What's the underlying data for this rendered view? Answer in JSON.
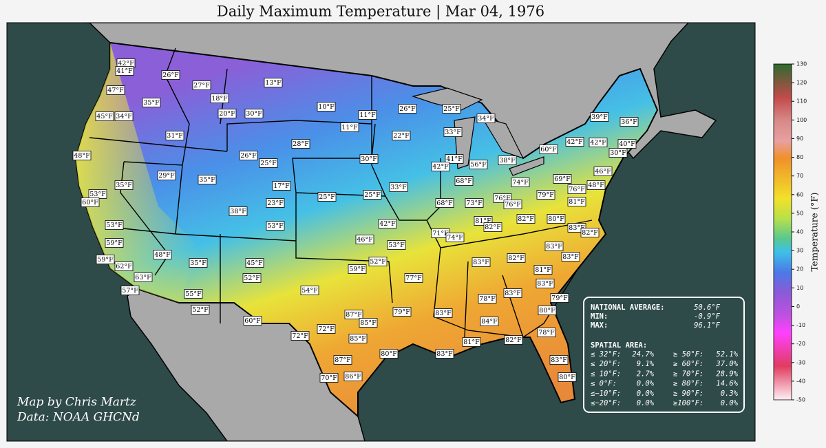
{
  "title": "Daily Maximum Temperature | Mar 04, 1976",
  "credit": [
    "Map by Chris Martz",
    "Data: NOAA GHCNd"
  ],
  "stations": [
    "42°F",
    "41°F",
    "26°F",
    "27°F",
    "13°F",
    "47°F",
    "18°F",
    "35°F",
    "10°F",
    "26°F",
    "25°F",
    "20°F",
    "30°F",
    "11°F",
    "45°F",
    "34°F",
    "39°F",
    "34°F",
    "36°F",
    "11°F",
    "33°F",
    "22°F",
    "31°F",
    "28°F",
    "42°F",
    "42°F",
    "40°F",
    "60°F",
    "30°F",
    "48°F",
    "26°F",
    "41°F",
    "30°F",
    "25°F",
    "56°F",
    "38°F",
    "42°F",
    "46°F",
    "29°F",
    "35°F",
    "69°F",
    "74°F",
    "68°F",
    "48°F",
    "35°F",
    "17°F",
    "33°F",
    "76°F",
    "53°F",
    "25°F",
    "25°F",
    "79°F",
    "76°F",
    "60°F",
    "23°F",
    "73°F",
    "76°F",
    "81°F",
    "68°F",
    "38°F",
    "82°F",
    "80°F",
    "81°F",
    "82°F",
    "42°F",
    "53°F",
    "53°F",
    "83°F",
    "82°F",
    "71°F",
    "74°F",
    "46°F",
    "59°F",
    "53°F",
    "83°F",
    "48°F",
    "83°F",
    "59°F",
    "82°F",
    "35°F",
    "45°F",
    "52°F",
    "83°F",
    "62°F",
    "59°F",
    "81°F",
    "63°F",
    "52°F",
    "77°F",
    "83°F",
    "57°F",
    "54°F",
    "55°F",
    "83°F",
    "78°F",
    "79°F",
    "52°F",
    "80°F",
    "79°F",
    "83°F",
    "87°F",
    "60°F",
    "85°F",
    "84°F",
    "72°F",
    "78°F",
    "72°F",
    "85°F",
    "81°F",
    "82°F",
    "80°F",
    "83°F",
    "87°F",
    "83°F",
    "70°F",
    "86°F",
    "80°F"
  ],
  "stats": {
    "rows": [
      [
        "NATIONAL AVERAGE:",
        "50.6°F"
      ],
      [
        "MIN:",
        "-0.9°F"
      ],
      [
        "MAX:",
        "96.1°F"
      ]
    ],
    "spatial_title": "SPATIAL AREA:",
    "spatial": [
      [
        "≤ 32°F:",
        "24.7%",
        "≥ 50°F:",
        "52.1%"
      ],
      [
        "≤ 20°F:",
        "9.1%",
        "≥ 60°F:",
        "37.0%"
      ],
      [
        "≤ 10°F:",
        "2.7%",
        "≥ 70°F:",
        "28.9%"
      ],
      [
        "≤  0°F:",
        "0.0%",
        "≥ 80°F:",
        "14.6%"
      ],
      [
        "≤−10°F:",
        "0.0%",
        "≥ 90°F:",
        "0.3%"
      ],
      [
        "≤−20°F:",
        "0.0%",
        "≥100°F:",
        "0.0%"
      ]
    ]
  },
  "colorbar": {
    "label": "Temperature (°F)",
    "lim": [
      -50,
      130
    ],
    "ticks": [
      130,
      120,
      110,
      100,
      90,
      80,
      70,
      60,
      50,
      40,
      30,
      20,
      10,
      0,
      -10,
      -20,
      -30,
      -40,
      -50
    ]
  }
}
